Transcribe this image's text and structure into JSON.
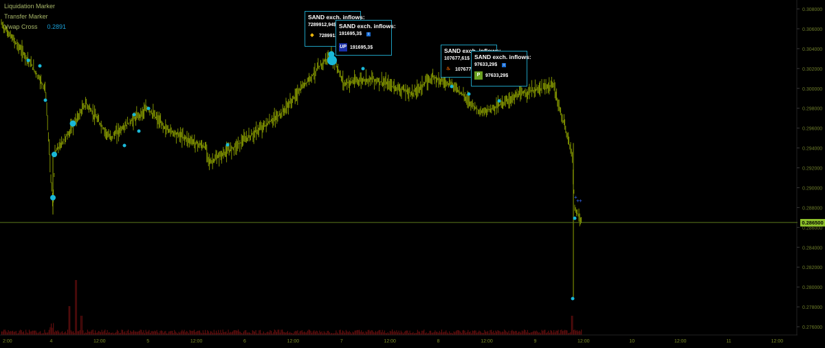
{
  "legend": {
    "liquidation_marker": "Liquidation Marker",
    "transfer_marker": "Transfer Marker",
    "vwap_cross_label": "Vwap Cross",
    "vwap_cross_value": "0.2891"
  },
  "price_axis": {
    "ticks": [
      "0.308000",
      "0.306000",
      "0.304000",
      "0.302000",
      "0.300000",
      "0.298000",
      "0.296000",
      "0.294000",
      "0.292000",
      "0.290000",
      "0.288000",
      "0.286000",
      "0.284000",
      "0.282000",
      "0.280000",
      "0.278000",
      "0.276000"
    ],
    "current_price": "0.286500"
  },
  "time_axis": {
    "labels": [
      "2:00",
      "4",
      "12:00",
      "5",
      "12:00",
      "6",
      "12:00",
      "7",
      "12:00",
      "8",
      "12:00",
      "9",
      "12:00",
      "10",
      "12:00",
      "11",
      "12:00"
    ]
  },
  "tooltips": [
    {
      "title": "SAND exch. inflows:",
      "top_line": "7289912,94$",
      "exchange_icon": "binance-icon",
      "amount": "7289912"
    },
    {
      "title": "SAND exch. inflows:",
      "top_line": "191695,3$",
      "exchange_icon": "upbit-icon",
      "amount": "191695,3$"
    },
    {
      "title": "SAND exch. inflows:",
      "top_line": "107677,61$",
      "exchange_icon": "exchange-flame-icon",
      "amount": "107677,6"
    },
    {
      "title": "SAND exch. inflows:",
      "top_line": "97633,29$",
      "exchange_icon": "exchange-p-icon",
      "amount": "97633,29$"
    }
  ],
  "colors": {
    "background": "#000000",
    "price_bars": "#8fa300",
    "marker": "#1ab8d8",
    "volume": "#6e1010",
    "current_price_tag": "#8cbf2a",
    "tooltip_border": "#1e9fc0"
  }
}
